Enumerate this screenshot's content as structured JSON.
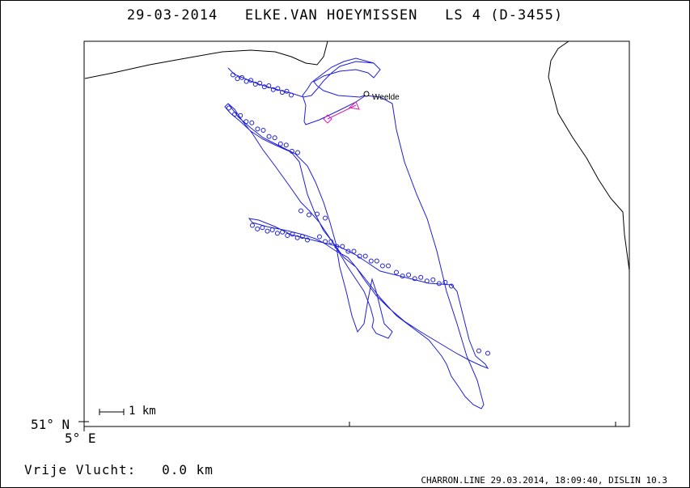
{
  "header": {
    "date": "29-03-2014",
    "owner": "ELKE.VAN HOEYMISSEN",
    "ring": "LS 4 (D-3455)"
  },
  "map": {
    "release_site": "Weelde",
    "scale_label": "1 km",
    "lat_label": "51° N",
    "lon_label": "5° E",
    "track_color": "#1f1fd6",
    "marker_color": "#d61fb6",
    "coast_color": "#000000"
  },
  "stats": {
    "free_flight_label": "Vrije Vlucht:",
    "free_flight_value": "0.0 km"
  },
  "footer": {
    "text": "CHARRON.LINE 29.03.2014, 18:09:40, DISLIN 10.3"
  }
}
